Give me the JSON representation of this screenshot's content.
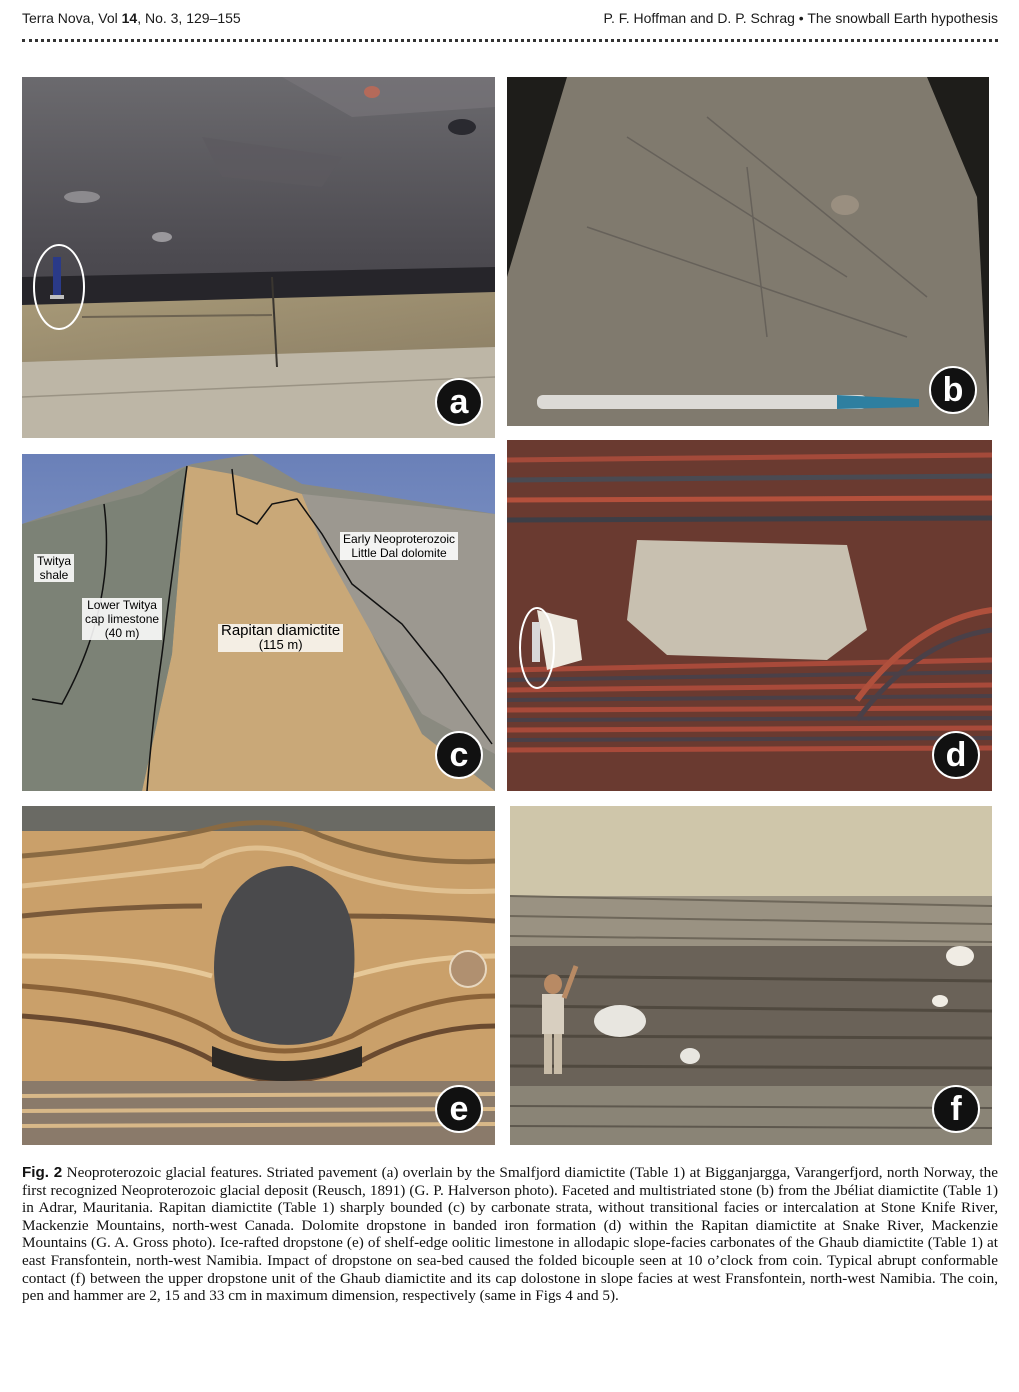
{
  "header": {
    "journal": "Terra Nova, Vol",
    "volume": "14",
    "issue_pages": ", No. 3, 129–155",
    "authors": "P. F. Hoffman and D. P. Schrag",
    "bullet": "•",
    "title": "The snowball Earth hypothesis"
  },
  "panels": {
    "a": {
      "label": "a"
    },
    "b": {
      "label": "b"
    },
    "c": {
      "label": "c",
      "annotations": {
        "twitya_shale_1": "Twitya",
        "twitya_shale_2": "shale",
        "lower_1": "Lower Twitya",
        "lower_2": "cap limestone",
        "lower_3": "(40 m)",
        "rapitan_1": "Rapitan diamictite",
        "rapitan_2": "(115 m)",
        "early_1": "Early Neoproterozoic",
        "early_2": "Little Dal dolomite"
      }
    },
    "d": {
      "label": "d"
    },
    "e": {
      "label": "e"
    },
    "f": {
      "label": "f"
    }
  },
  "caption": {
    "fig_label": "Fig. 2",
    "text": "Neoproterozoic glacial features. Striated pavement (a) overlain by the Smalfjord diamictite (Table 1) at Bigganjargga, Varangerfjord, north Norway, the first recognized Neoproterozoic glacial deposit (Reusch, 1891) (G. P. Halverson photo). Faceted and multistriated stone (b) from the Jbéliat diamictite (Table 1) in Adrar, Mauritania. Rapitan diamictite (Table 1) sharply bounded (c) by carbonate strata, without transitional facies or intercalation at Stone Knife River, Mackenzie Mountains, north-west Canada. Dolomite dropstone in banded iron formation (d) within the Rapitan diamictite at Snake River, Mackenzie Mountains (G. A. Gross photo). Ice-rafted dropstone (e) of shelf-edge oolitic limestone in allodapic slope-facies carbonates of the Ghaub diamictite (Table 1) at east Fransfontein, north-west Namibia. Impact of dropstone on sea-bed caused the folded bicouple seen at 10 o’clock from coin. Typical abrupt conformable contact (f) between the upper dropstone unit of the Ghaub diamictite and its cap dolostone in slope facies at west Fransfontein, north-west Namibia. The coin, pen and hammer are 2, 15 and 33 cm in maximum dimension, respectively (same in Figs 4 and 5)."
  }
}
